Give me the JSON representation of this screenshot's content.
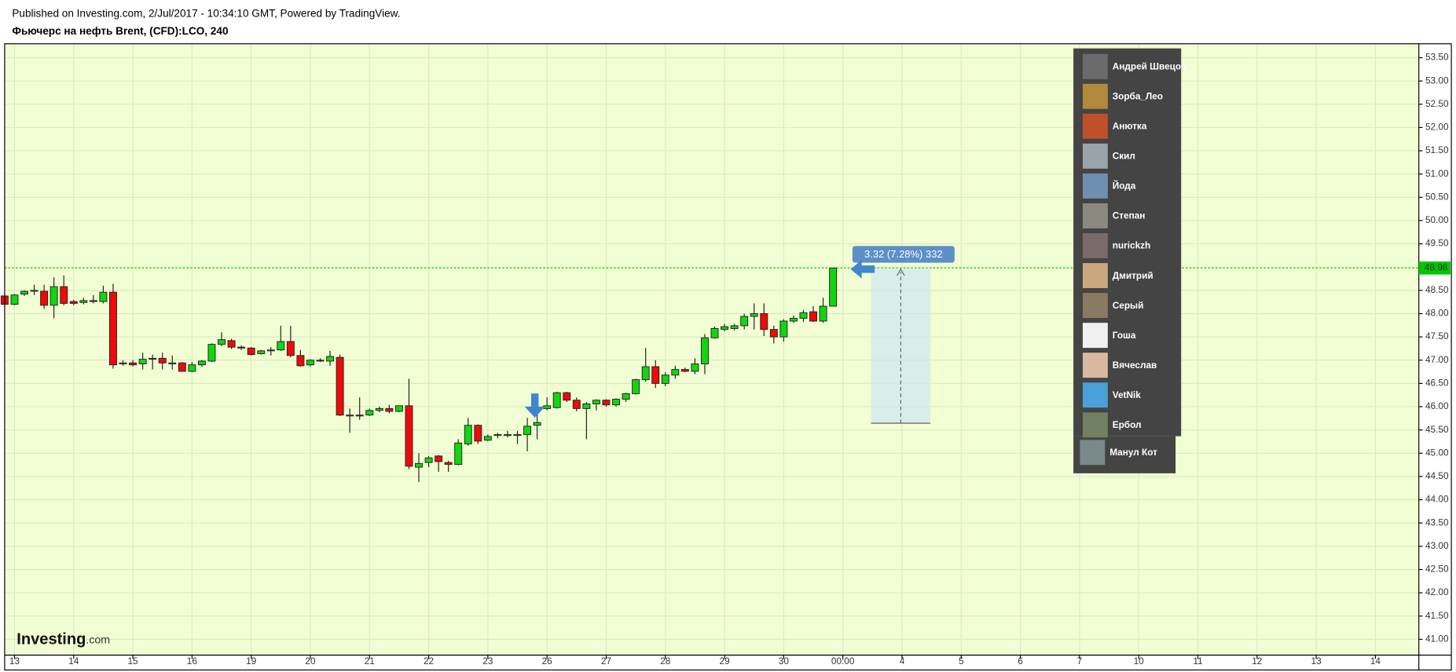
{
  "header": {
    "published": "Published on Investing.com, 2/Jul/2017 - 10:34:10 GMT, Powered by TradingView.",
    "title": "Фьючерс на нефть Brent, (CFD):LCO, 240"
  },
  "chart_data": {
    "type": "candlestick",
    "categories": [
      null,
      "13",
      null,
      null,
      null,
      null,
      null,
      "14",
      null,
      null,
      null,
      null,
      null,
      "15",
      null,
      null,
      null,
      null,
      null,
      "16",
      null,
      null,
      null,
      null,
      null,
      "19",
      null,
      null,
      null,
      null,
      null,
      "20",
      null,
      null,
      null,
      null,
      null,
      "21",
      null,
      null,
      null,
      null,
      null,
      "22",
      null,
      null,
      null,
      null,
      null,
      "23",
      null,
      null,
      null,
      null,
      null,
      "26",
      null,
      null,
      null,
      null,
      null,
      "27",
      null,
      null,
      null,
      null,
      null,
      "28",
      null,
      null,
      null,
      null,
      null,
      "29",
      null,
      null,
      null,
      null,
      null,
      "30",
      null,
      null,
      null,
      null,
      null,
      "00:00",
      null,
      null,
      null,
      null,
      null,
      "4",
      null,
      null,
      null,
      null,
      null,
      "5",
      null,
      null,
      null,
      null,
      null,
      "6",
      null,
      null,
      null,
      null,
      null,
      "7",
      null,
      null,
      null,
      null,
      null,
      "10",
      null,
      null,
      null,
      null,
      null,
      "11",
      null,
      null,
      null,
      null,
      null,
      "12",
      null,
      null,
      null,
      null,
      null,
      "13",
      null,
      null,
      null,
      null,
      null,
      "14",
      null,
      null,
      null,
      null
    ],
    "open": [
      48.38,
      48.2,
      48.42,
      48.48,
      48.48,
      48.18,
      48.58,
      48.26,
      48.24,
      48.28,
      48.26,
      48.46,
      46.92,
      46.94,
      46.92,
      47.04,
      47.04,
      46.94,
      46.94,
      46.76,
      46.9,
      46.98,
      47.34,
      47.42,
      47.28,
      47.26,
      47.14,
      47.2,
      47.22,
      47.4,
      47.1,
      46.9,
      47.0,
      46.98,
      47.06,
      45.82,
      45.82,
      45.82,
      45.92,
      45.96,
      45.9,
      46.02,
      44.7,
      44.8,
      44.94,
      44.8,
      44.76,
      45.2,
      45.6,
      45.28,
      45.38,
      45.4,
      45.4,
      45.4,
      45.6,
      45.96,
      45.98,
      46.3,
      46.14,
      45.96,
      46.06,
      46.14,
      46.04,
      46.16,
      46.28,
      46.58,
      46.86,
      46.5,
      46.68,
      46.8,
      46.76,
      46.92,
      47.48,
      47.66,
      47.68,
      47.74,
      47.94,
      48.0,
      47.66,
      47.5,
      47.84,
      47.9,
      48.04,
      47.84,
      48.16,
      null,
      null,
      null,
      null,
      null,
      null,
      null,
      null,
      null,
      null,
      null,
      null,
      null,
      null,
      null,
      null,
      null,
      null,
      null,
      null,
      null,
      null,
      null,
      null,
      null,
      null,
      null,
      null,
      null,
      null,
      null,
      null,
      null,
      null,
      null,
      null,
      null,
      null,
      null,
      null,
      null,
      null,
      null,
      null,
      null,
      null,
      null,
      null,
      null,
      null,
      null,
      null,
      null,
      null,
      null,
      null,
      null,
      null,
      null
    ],
    "high": [
      48.42,
      48.42,
      48.5,
      48.62,
      48.62,
      48.78,
      48.82,
      48.3,
      48.34,
      48.4,
      48.6,
      48.64,
      47.0,
      47.0,
      47.16,
      47.12,
      47.16,
      47.1,
      46.96,
      46.96,
      47.0,
      47.36,
      47.6,
      47.46,
      47.32,
      47.28,
      47.22,
      47.28,
      47.74,
      47.74,
      47.22,
      47.02,
      47.04,
      47.2,
      47.12,
      45.96,
      46.2,
      45.96,
      46.0,
      46.04,
      46.0,
      46.6,
      45.0,
      44.94,
      44.96,
      44.84,
      45.3,
      45.76,
      45.62,
      45.4,
      45.44,
      45.48,
      45.48,
      45.76,
      45.88,
      46.2,
      46.32,
      46.32,
      46.2,
      46.1,
      46.16,
      46.16,
      46.18,
      46.3,
      46.6,
      47.26,
      47.0,
      46.74,
      46.88,
      46.84,
      47.04,
      47.56,
      47.72,
      47.78,
      47.78,
      48.0,
      48.22,
      48.22,
      47.74,
      47.88,
      47.96,
      48.08,
      48.16,
      48.34,
      48.98,
      null,
      null,
      null,
      null,
      null,
      null,
      null,
      null,
      null,
      null,
      null,
      null,
      null,
      null,
      null,
      null,
      null,
      null,
      null,
      null,
      null,
      null,
      null,
      null,
      null,
      null,
      null,
      null,
      null,
      null,
      null,
      null,
      null,
      null,
      null,
      null,
      null,
      null,
      null,
      null,
      null,
      null,
      null,
      null,
      null,
      null,
      null,
      null,
      null,
      null,
      null,
      null,
      null,
      null,
      null,
      null,
      null,
      null,
      null
    ],
    "low": [
      48.18,
      48.18,
      48.38,
      48.4,
      48.1,
      47.9,
      48.18,
      48.18,
      48.2,
      48.22,
      48.22,
      46.82,
      46.88,
      46.86,
      46.8,
      46.8,
      46.8,
      46.8,
      46.76,
      46.74,
      46.86,
      46.96,
      47.3,
      47.24,
      47.22,
      47.1,
      47.12,
      47.1,
      47.2,
      47.06,
      46.86,
      46.86,
      46.96,
      46.88,
      45.8,
      45.44,
      45.72,
      45.8,
      45.88,
      45.86,
      45.88,
      44.66,
      44.38,
      44.7,
      44.6,
      44.6,
      44.74,
      45.16,
      45.2,
      45.26,
      45.32,
      45.34,
      45.2,
      45.04,
      45.3,
      45.92,
      45.96,
      46.1,
      45.9,
      45.3,
      45.92,
      46.0,
      46.0,
      46.1,
      46.26,
      46.54,
      46.4,
      46.44,
      46.6,
      46.74,
      46.7,
      46.7,
      47.46,
      47.62,
      47.64,
      47.66,
      47.66,
      47.52,
      47.36,
      47.4,
      47.8,
      47.82,
      47.82,
      47.8,
      48.16,
      null,
      null,
      null,
      null,
      null,
      null,
      null,
      null,
      null,
      null,
      null,
      null,
      null,
      null,
      null,
      null,
      null,
      null,
      null,
      null,
      null,
      null,
      null,
      null,
      null,
      null,
      null,
      null,
      null,
      null,
      null,
      null,
      null,
      null,
      null,
      null,
      null,
      null,
      null,
      null,
      null,
      null,
      null,
      null,
      null,
      null,
      null,
      null,
      null,
      null,
      null,
      null,
      null,
      null,
      null,
      null,
      null,
      null,
      null
    ],
    "close": [
      48.2,
      48.4,
      48.48,
      48.5,
      48.18,
      48.58,
      48.22,
      48.22,
      48.28,
      48.26,
      48.46,
      46.9,
      46.94,
      46.9,
      47.02,
      47.04,
      46.94,
      46.94,
      46.76,
      46.9,
      46.98,
      47.34,
      47.44,
      47.28,
      47.26,
      47.12,
      47.2,
      47.22,
      47.4,
      47.1,
      46.88,
      47.0,
      46.98,
      47.08,
      45.82,
      45.82,
      45.8,
      45.92,
      45.96,
      45.9,
      46.02,
      44.72,
      44.78,
      44.9,
      44.82,
      44.76,
      45.22,
      45.6,
      45.26,
      45.36,
      45.4,
      45.4,
      45.4,
      45.58,
      45.66,
      46.02,
      46.3,
      46.14,
      45.96,
      46.06,
      46.14,
      46.04,
      46.16,
      46.28,
      46.58,
      46.86,
      46.5,
      46.68,
      46.8,
      46.76,
      46.92,
      47.48,
      47.68,
      47.72,
      47.74,
      47.94,
      48.0,
      47.66,
      47.5,
      47.84,
      47.9,
      48.02,
      47.84,
      48.16,
      48.98,
      null,
      null,
      null,
      null,
      null,
      null,
      null,
      null,
      null,
      null,
      null,
      null,
      null,
      null,
      null,
      null,
      null,
      null,
      null,
      null,
      null,
      null,
      null,
      null,
      null,
      null,
      null,
      null,
      null,
      null,
      null,
      null,
      null,
      null,
      null,
      null,
      null,
      null,
      null,
      null,
      null,
      null,
      null,
      null,
      null,
      null,
      null,
      null,
      null,
      null,
      null,
      null,
      null,
      null,
      null,
      null,
      null,
      null,
      null
    ],
    "up_color": "#11d611",
    "down_color": "#ee0a0a",
    "background": "#f1fdd2",
    "grid": true,
    "ylim": [
      40.66,
      53.78
    ],
    "yticks": [
      {
        "value": 41,
        "label": "41.00"
      },
      {
        "value": 41.5,
        "label": "41.50"
      },
      {
        "value": 42,
        "label": "42.00"
      },
      {
        "value": 42.5,
        "label": "42.50"
      },
      {
        "value": 43,
        "label": "43.00"
      },
      {
        "value": 43.5,
        "label": "43.50"
      },
      {
        "value": 44,
        "label": "44.00"
      },
      {
        "value": 44.5,
        "label": "44.50"
      },
      {
        "value": 45,
        "label": "45.00"
      },
      {
        "value": 45.5,
        "label": "45.50"
      },
      {
        "value": 46,
        "label": "46.00"
      },
      {
        "value": 46.5,
        "label": "46.50"
      },
      {
        "value": 47,
        "label": "47.00"
      },
      {
        "value": 47.5,
        "label": "47.50"
      },
      {
        "value": 48,
        "label": "48.00"
      },
      {
        "value": 48.5,
        "label": "48.50"
      },
      {
        "value": 49,
        "label": "49.00"
      },
      {
        "value": 49.5,
        "label": "49.50"
      },
      {
        "value": 50,
        "label": "50.00"
      },
      {
        "value": 50.5,
        "label": "50.50"
      },
      {
        "value": 51,
        "label": "51.00"
      },
      {
        "value": 51.5,
        "label": "51.50"
      },
      {
        "value": 52,
        "label": "52.00"
      },
      {
        "value": 52.5,
        "label": "52.50"
      },
      {
        "value": 53,
        "label": "53.00"
      },
      {
        "value": 53.5,
        "label": "53.50"
      }
    ],
    "last_price": 48.98,
    "last_price_color": "#00c800",
    "annotation": "3.32 (7.28%) 332"
  },
  "logo": {
    "brand": "Investing",
    "suffix": ".com"
  },
  "users": [
    "Андрей Швецов",
    "Зорба_Лео",
    "Анютка",
    "Скил",
    "Йода",
    "Степан",
    "nurickzh",
    "Дмитрий",
    "Серый",
    "Гоша",
    "Вячеслав",
    "VetNik",
    "Ербол",
    "Манул Кот"
  ]
}
